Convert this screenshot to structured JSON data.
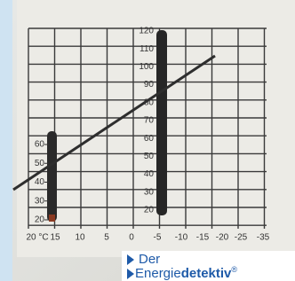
{
  "left_scale": {
    "labels": [
      "20",
      "30",
      "40",
      "50",
      "60"
    ]
  },
  "right_scale": {
    "labels": [
      "20",
      "30",
      "40",
      "50",
      "60",
      "70",
      "80",
      "90",
      "100",
      "110",
      "120"
    ]
  },
  "x_axis": {
    "labels": [
      "20 °C",
      "15",
      "10",
      "5",
      "0",
      "-5",
      "-10",
      "-15",
      "-20",
      "-25",
      "-35"
    ]
  },
  "logo": {
    "line1": "Der",
    "word_light": "Energie",
    "word_bold": "detektiv",
    "mark": "®"
  }
}
